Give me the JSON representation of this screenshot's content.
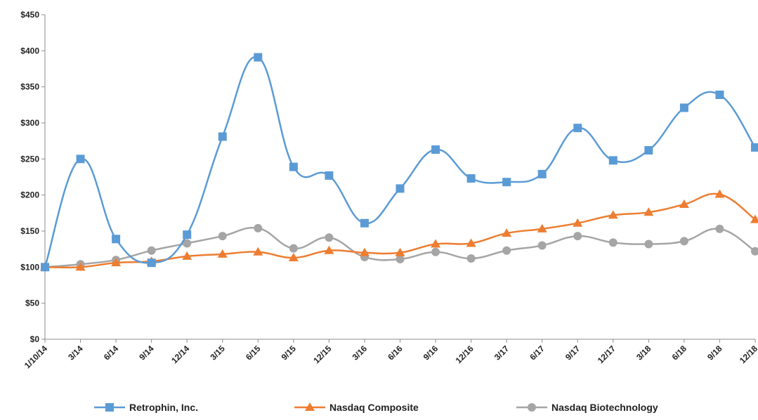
{
  "chart_data": {
    "type": "line",
    "title": "",
    "xlabel": "",
    "ylabel": "",
    "categories": [
      "1/10/14",
      "3/14",
      "6/14",
      "9/14",
      "12/14",
      "3/15",
      "6/15",
      "9/15",
      "12/15",
      "3/16",
      "6/16",
      "9/16",
      "12/16",
      "3/17",
      "6/17",
      "9/17",
      "12/17",
      "3/18",
      "6/18",
      "9/18",
      "12/18"
    ],
    "y_ticks": [
      "$0",
      "$50",
      "$100",
      "$150",
      "$200",
      "$250",
      "$300",
      "$350",
      "$400",
      "$450"
    ],
    "ylim": [
      0,
      450
    ],
    "grid": false,
    "legend_position": "bottom",
    "series": [
      {
        "name": "Retrophin, Inc.",
        "color": "#5B9BD5",
        "marker": "square",
        "values": [
          100,
          250,
          139,
          106,
          145,
          281,
          391,
          239,
          227,
          161,
          209,
          263,
          223,
          218,
          229,
          293,
          248,
          262,
          321,
          339,
          266
        ]
      },
      {
        "name": "Nasdaq Composite",
        "color": "#ED7D31",
        "marker": "triangle",
        "values": [
          100,
          100,
          106,
          108,
          115,
          118,
          121,
          113,
          123,
          120,
          120,
          132,
          133,
          147,
          153,
          161,
          172,
          176,
          187,
          201,
          166
        ]
      },
      {
        "name": "Nasdaq Biotechnology",
        "color": "#A5A5A5",
        "marker": "circle",
        "values": [
          100,
          104,
          110,
          123,
          133,
          143,
          154,
          126,
          141,
          114,
          111,
          121,
          112,
          123,
          130,
          143,
          134,
          132,
          136,
          153,
          122
        ]
      }
    ]
  }
}
